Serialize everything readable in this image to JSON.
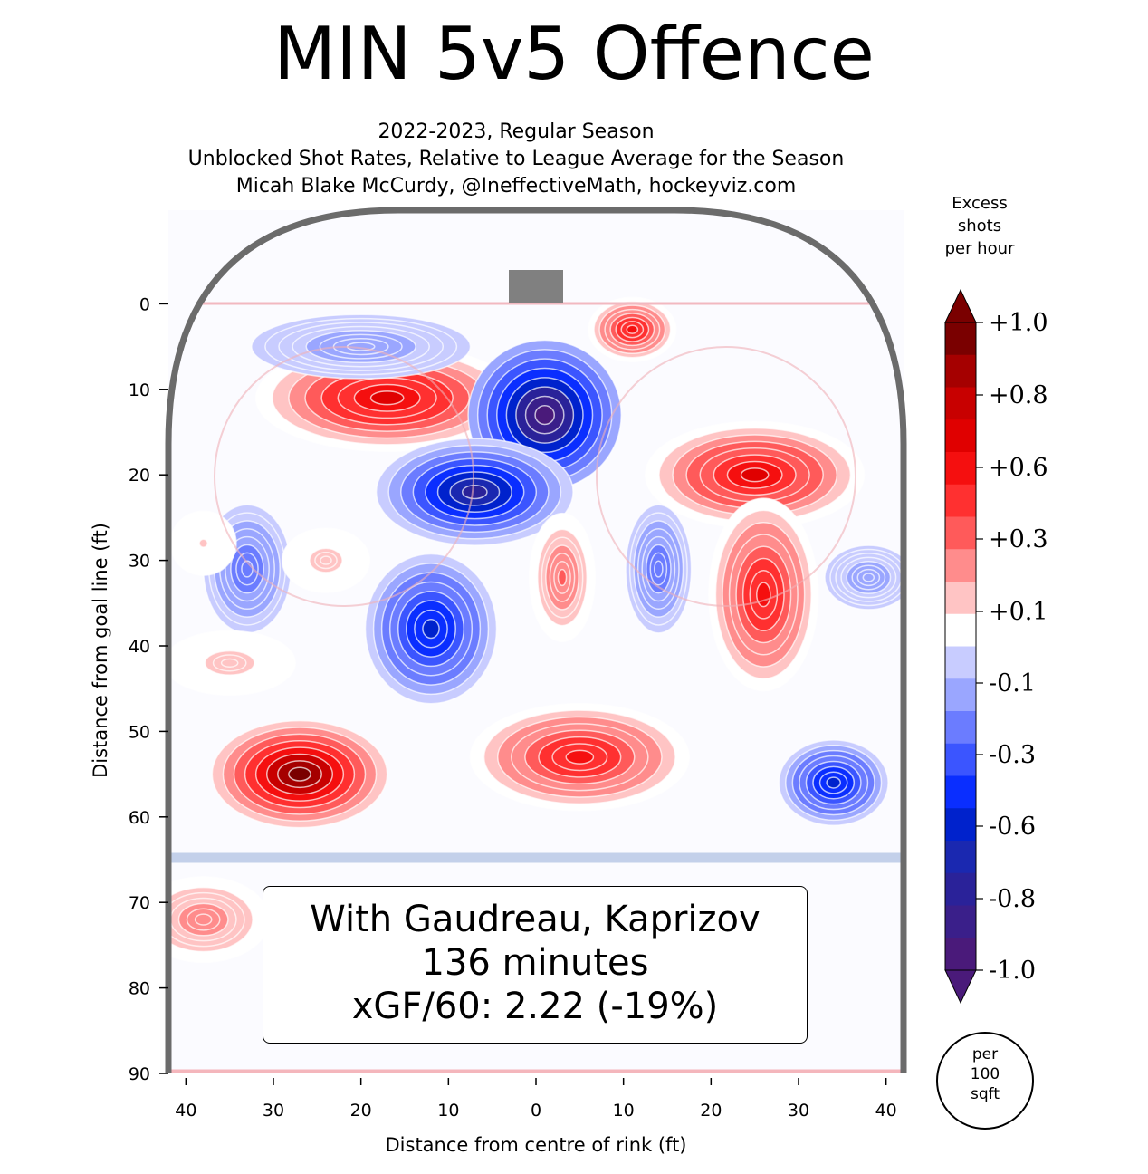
{
  "header": {
    "title": "MIN 5v5 Offence",
    "subtitle1": "2022-2023, Regular Season",
    "subtitle2": "Unblocked Shot Rates, Relative to League Average for the Season",
    "subtitle3": "Micah Blake McCurdy, @IneffectiveMath, hockeyviz.com"
  },
  "annotation": {
    "line1": "With Gaudreau, Kaprizov",
    "line2": "136 minutes",
    "line3": "xGF/60: 2.22 (-19%)"
  },
  "colorbar": {
    "title_line1": "Excess",
    "title_line2": "shots",
    "title_line3": "per hour",
    "unit_line1": "per",
    "unit_line2": "100",
    "unit_line3": "sqft",
    "ticks": [
      "+1.0",
      "+0.8",
      "+0.6",
      "+0.3",
      "+0.1",
      "-0.1",
      "-0.3",
      "-0.6",
      "-0.8",
      "-1.0"
    ],
    "colors": [
      "#7a0000",
      "#a50000",
      "#c80000",
      "#e00000",
      "#f50f0f",
      "#ff3030",
      "#ff5a5a",
      "#ff8c8c",
      "#ffc4c4",
      "#ffffff",
      "#c8ccff",
      "#9aa6ff",
      "#6b7cff",
      "#3b55ff",
      "#0a2eff",
      "#0022cc",
      "#1a28b0",
      "#2a2299",
      "#3a1f8a",
      "#4a1a7a"
    ]
  },
  "chart_data": {
    "type": "heatmap",
    "title": "MIN 5v5 Offence",
    "xlabel": "Distance from centre of rink (ft)",
    "ylabel": "Distance from goal line (ft)",
    "xlim": [
      -42,
      42
    ],
    "ylim": [
      90,
      -10
    ],
    "xticks": [
      "40",
      "30",
      "20",
      "10",
      "0",
      "10",
      "20",
      "30",
      "40"
    ],
    "yticks": [
      "0",
      "10",
      "20",
      "30",
      "40",
      "50",
      "60",
      "70",
      "80",
      "90"
    ],
    "value_range": [
      -1.0,
      1.0
    ],
    "blobs": [
      {
        "x": -17,
        "y": 11,
        "value": 0.7,
        "sx": 12,
        "sy": 5
      },
      {
        "x": 1,
        "y": 13,
        "value": -1.0,
        "sx": 7,
        "sy": 7
      },
      {
        "x": -7,
        "y": 22,
        "value": -0.8,
        "sx": 9,
        "sy": 5
      },
      {
        "x": 11,
        "y": 3,
        "value": 0.6,
        "sx": 4,
        "sy": 3
      },
      {
        "x": 25,
        "y": 20,
        "value": 0.65,
        "sx": 10,
        "sy": 5
      },
      {
        "x": 26,
        "y": 34,
        "value": 0.6,
        "sx": 5,
        "sy": 9
      },
      {
        "x": 3,
        "y": 32,
        "value": 0.35,
        "sx": 3,
        "sy": 6
      },
      {
        "x": 14,
        "y": 31,
        "value": -0.3,
        "sx": 3,
        "sy": 6
      },
      {
        "x": -33,
        "y": 31,
        "value": -0.3,
        "sx": 4,
        "sy": 6
      },
      {
        "x": -12,
        "y": 38,
        "value": -0.6,
        "sx": 6,
        "sy": 7
      },
      {
        "x": -27,
        "y": 55,
        "value": 1.0,
        "sx": 8,
        "sy": 5
      },
      {
        "x": 5,
        "y": 53,
        "value": 0.6,
        "sx": 10,
        "sy": 5
      },
      {
        "x": 34,
        "y": 56,
        "value": -0.6,
        "sx": 5,
        "sy": 4
      },
      {
        "x": -38,
        "y": 72,
        "value": 0.3,
        "sx": 6,
        "sy": 4
      },
      {
        "x": -24,
        "y": 30,
        "value": 0.15,
        "sx": 4,
        "sy": 3
      },
      {
        "x": -38,
        "y": 28,
        "value": 0.12,
        "sx": 3,
        "sy": 3
      },
      {
        "x": -35,
        "y": 42,
        "value": 0.15,
        "sx": 6,
        "sy": 3
      },
      {
        "x": 38,
        "y": 32,
        "value": -0.2,
        "sx": 4,
        "sy": 3
      },
      {
        "x": -20,
        "y": 5,
        "value": -0.2,
        "sx": 10,
        "sy": 3
      }
    ]
  }
}
